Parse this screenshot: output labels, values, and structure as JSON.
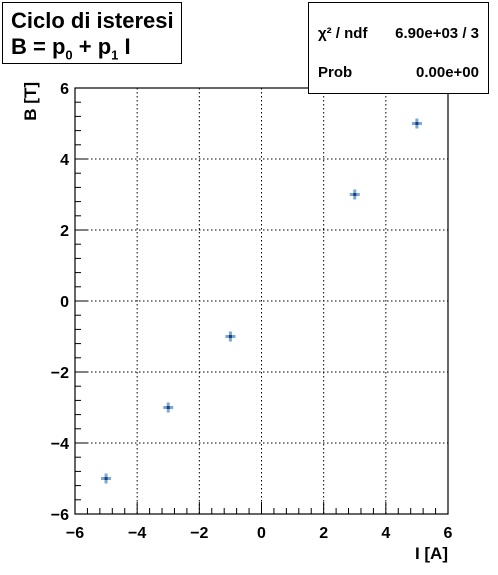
{
  "title_box": {
    "line1": "Ciclo di isteresi",
    "line2_parts": [
      "B = p",
      "0",
      " + p",
      "1",
      " I"
    ]
  },
  "stats": {
    "chi2_label": "χ² / ndf",
    "chi2_value": "6.90e+03 / 3",
    "prob_label": "Prob",
    "prob_value": "0.00e+00"
  },
  "chart_data": {
    "type": "scatter",
    "title": "Ciclo di isteresi",
    "xlabel": "I [A]",
    "ylabel": "B [T]",
    "xlim": [
      -6,
      6
    ],
    "ylim": [
      -6,
      6
    ],
    "grid": true,
    "x_ticks": [
      "−6",
      "−4",
      "−2",
      "0",
      "2",
      "4",
      "6"
    ],
    "y_ticks": [
      "−6",
      "−4",
      "−2",
      "0",
      "2",
      "4",
      "6"
    ],
    "points": [
      {
        "x": -5,
        "y": -5
      },
      {
        "x": -3,
        "y": -3
      },
      {
        "x": -1,
        "y": -1
      },
      {
        "x": 3,
        "y": 3
      },
      {
        "x": 5,
        "y": 5
      }
    ],
    "marker_color": "#1f3f7a",
    "error_color": "#7aa7d6"
  }
}
